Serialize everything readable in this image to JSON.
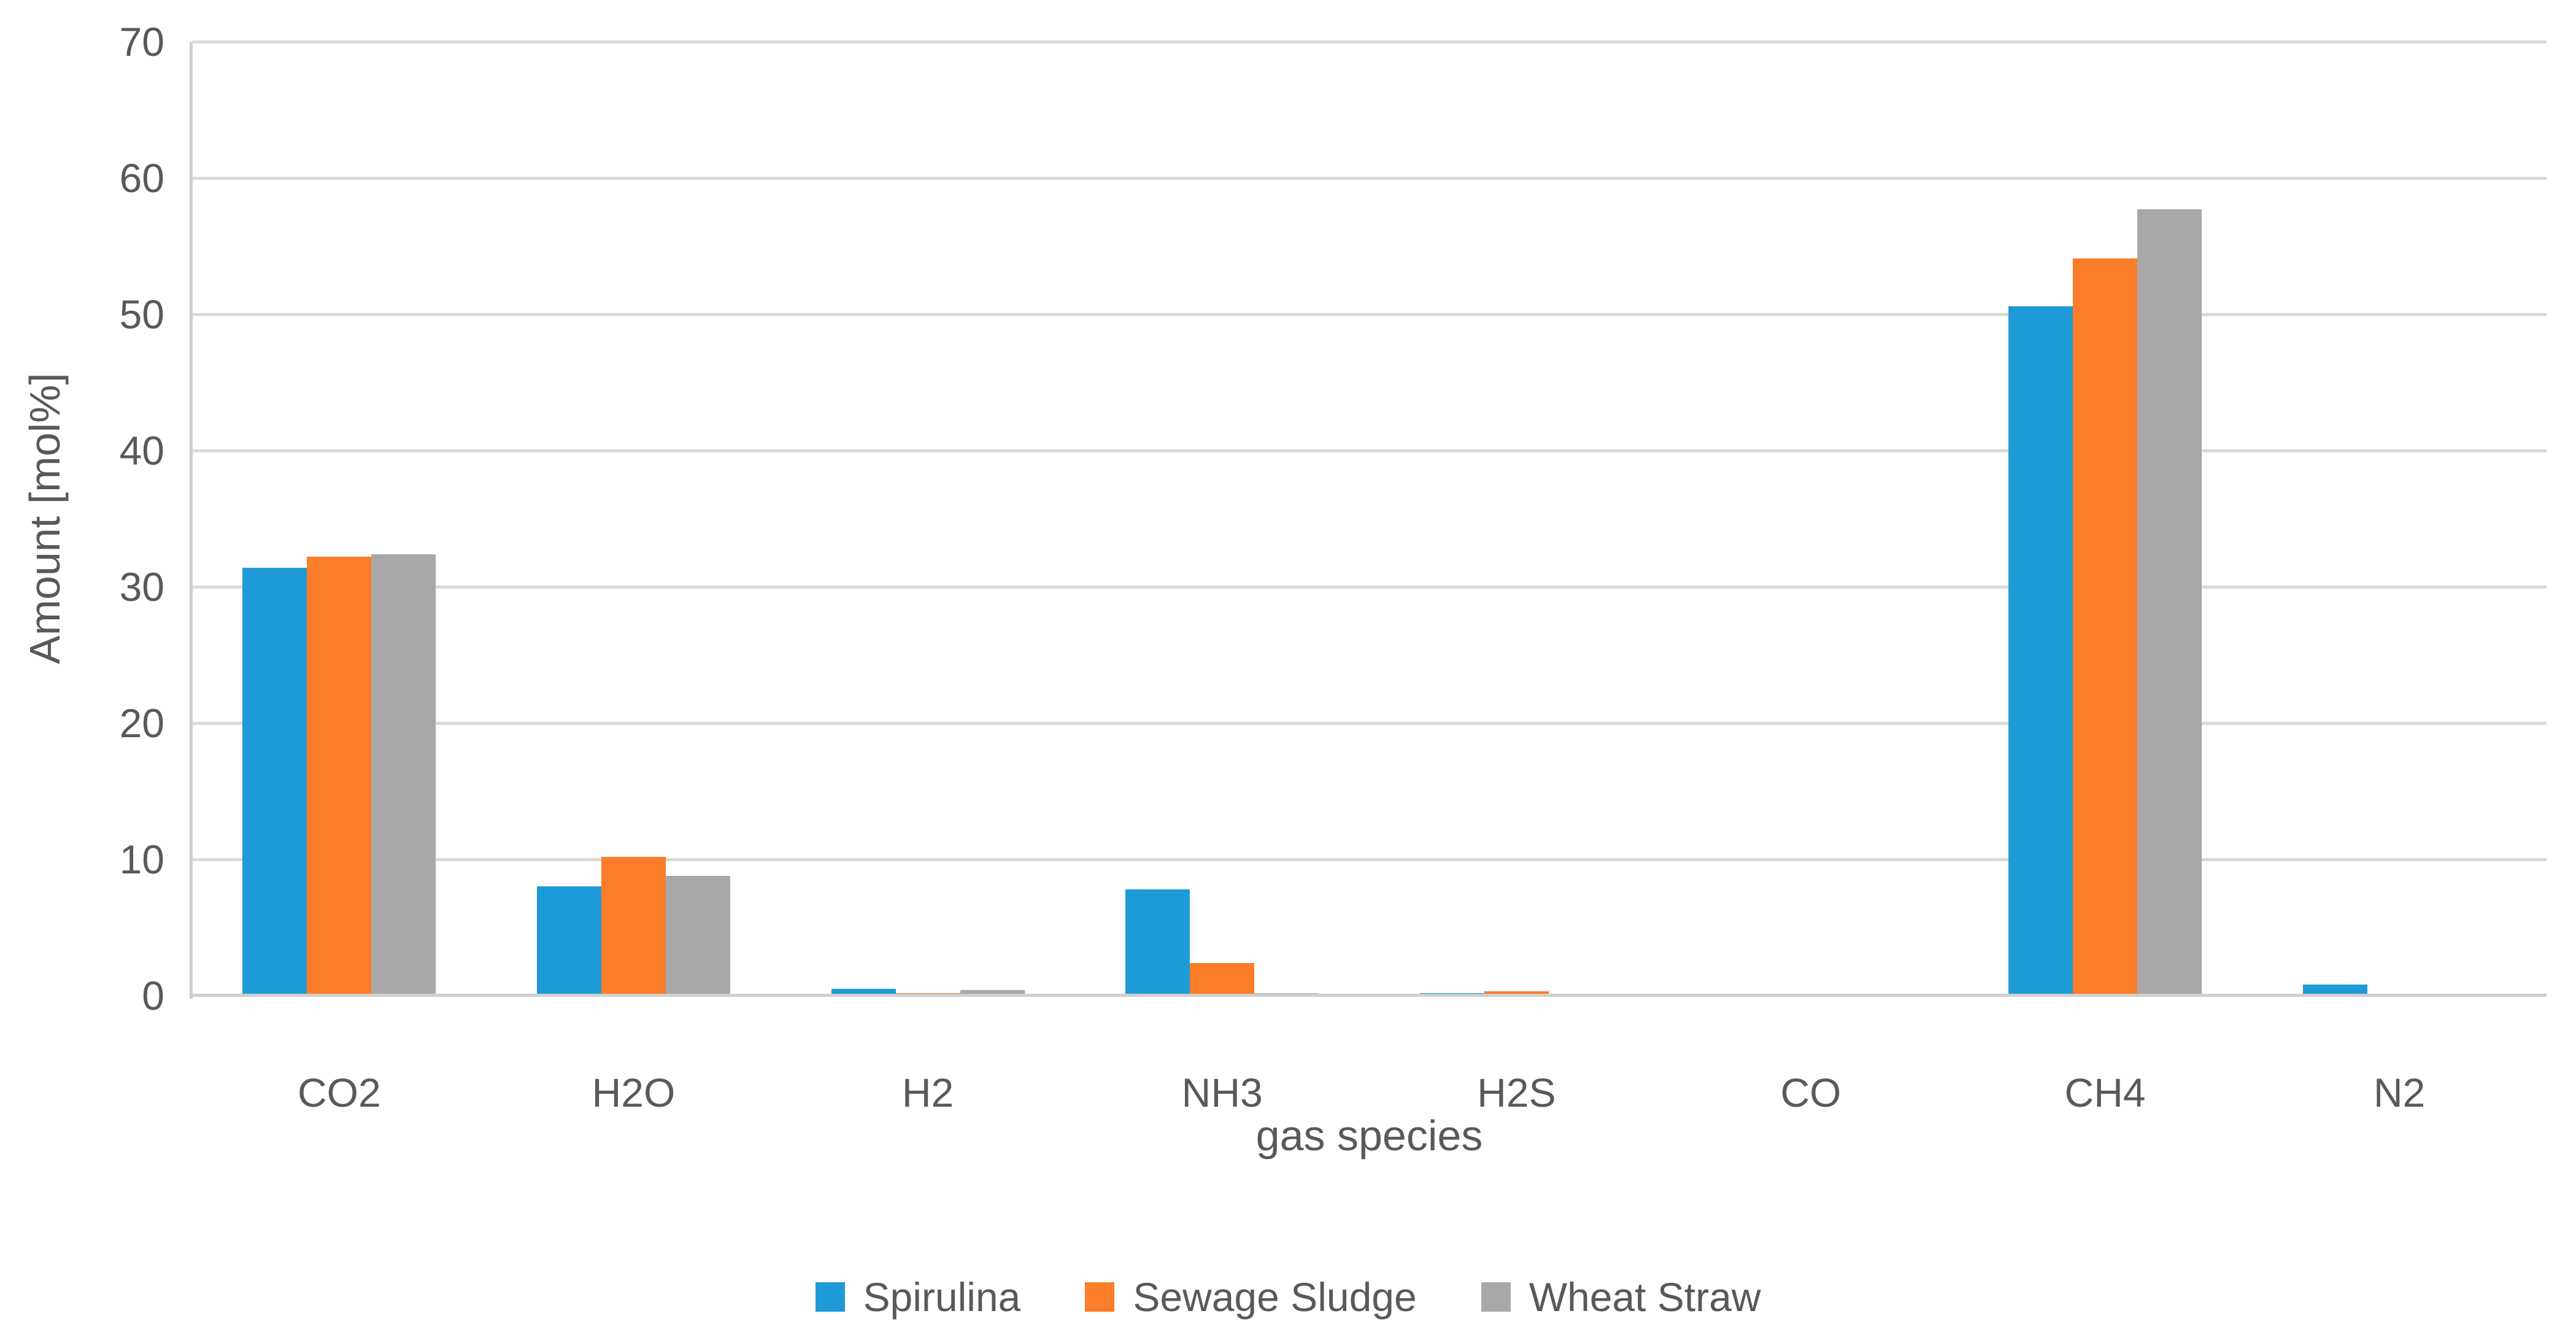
{
  "chart_data": {
    "type": "bar",
    "title": "",
    "xlabel": "gas species",
    "ylabel": "Amount [mol%]",
    "categories": [
      "CO2",
      "H2O",
      "H2",
      "NH3",
      "H2S",
      "CO",
      "CH4",
      "N2"
    ],
    "series": [
      {
        "name": "Spirulina",
        "color": "#1e9bd7",
        "values": [
          31.4,
          8.0,
          0.5,
          7.8,
          0.2,
          0.1,
          50.6,
          0.8
        ]
      },
      {
        "name": "Sewage Sludge",
        "color": "#fb7d29",
        "values": [
          32.2,
          10.2,
          0.2,
          2.4,
          0.3,
          0.1,
          54.1,
          0.15
        ]
      },
      {
        "name": "Wheat Straw",
        "color": "#a8a8a8",
        "values": [
          32.4,
          8.8,
          0.4,
          0.2,
          0.1,
          0.05,
          57.7,
          0.05
        ]
      }
    ],
    "ylim": [
      0,
      70
    ],
    "ytick_step": 10,
    "yticks": [
      0,
      10,
      20,
      30,
      40,
      50,
      60,
      70
    ],
    "grid": "horizontal",
    "legend_position": "bottom",
    "colors": {
      "gridline": "#d9d9d9",
      "axis_line": "#cfcfcf",
      "text": "#595959",
      "background": "#ffffff"
    }
  }
}
